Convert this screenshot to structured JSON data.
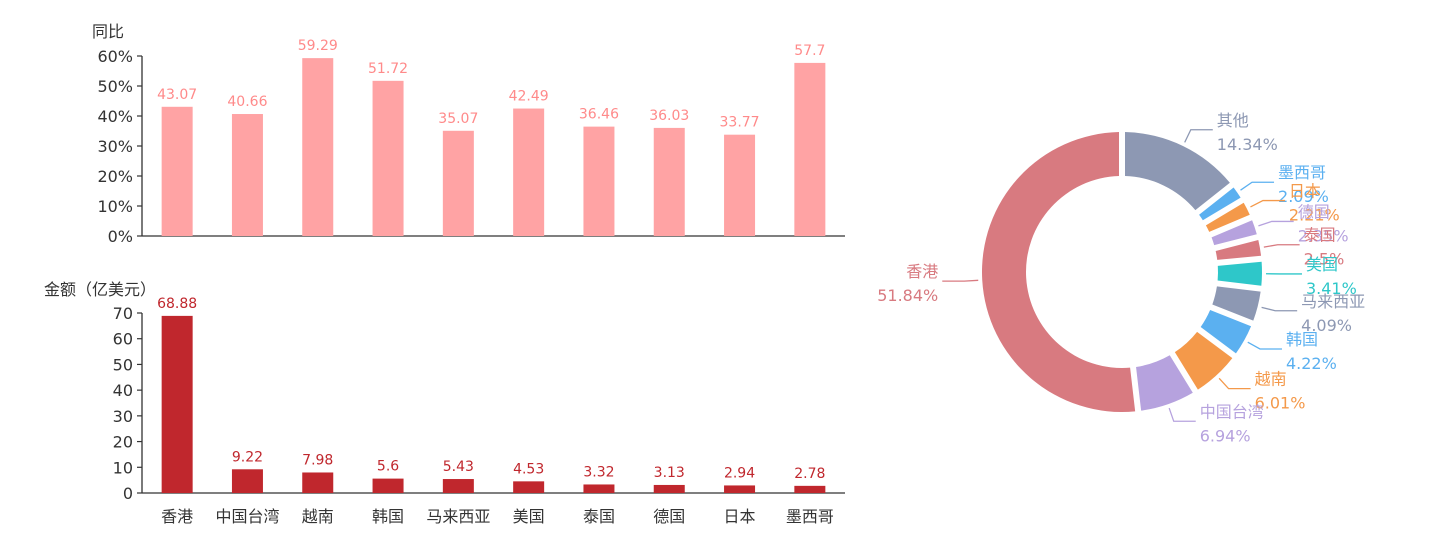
{
  "colors": {
    "top_bar": "#ffa3a4",
    "top_label": "#ff8a8a",
    "bottom_bar": "#c0272d",
    "bottom_label": "#c0272d",
    "axis": "#333333",
    "axis_text": "#333333"
  },
  "chart_data": [
    {
      "type": "bar",
      "ylabel": "同比",
      "categories": [
        "香港",
        "中国台湾",
        "越南",
        "韩国",
        "马来西亚",
        "美国",
        "泰国",
        "德国",
        "日本",
        "墨西哥"
      ],
      "values": [
        43.07,
        40.66,
        59.29,
        51.72,
        35.07,
        42.49,
        36.46,
        36.03,
        33.77,
        57.7
      ],
      "data_labels": [
        "43.07",
        "40.66",
        "59.29",
        "51.72",
        "35.07",
        "42.49",
        "36.46",
        "36.03",
        "33.77",
        "57.7"
      ],
      "ylim": [
        0,
        60
      ],
      "yticks": [
        "0%",
        "10%",
        "20%",
        "30%",
        "40%",
        "50%",
        "60%"
      ]
    },
    {
      "type": "bar",
      "ylabel": "金额（亿美元）",
      "categories": [
        "香港",
        "中国台湾",
        "越南",
        "韩国",
        "马来西亚",
        "美国",
        "泰国",
        "德国",
        "日本",
        "墨西哥"
      ],
      "values": [
        68.88,
        9.22,
        7.98,
        5.6,
        5.43,
        4.53,
        3.32,
        3.13,
        2.94,
        2.78
      ],
      "data_labels": [
        "68.88",
        "9.22",
        "7.98",
        "5.6",
        "5.43",
        "4.53",
        "3.32",
        "3.13",
        "2.94",
        "2.78"
      ],
      "ylim": [
        0,
        70
      ],
      "yticks": [
        "0",
        "10",
        "20",
        "30",
        "40",
        "50",
        "60",
        "70"
      ]
    },
    {
      "type": "pie",
      "donut": true,
      "slices": [
        {
          "name": "其他",
          "value": 14.34,
          "label": "14.34%",
          "color": "#8d98b3"
        },
        {
          "name": "墨西哥",
          "value": 2.09,
          "label": "2.09%",
          "color": "#5bb0f0"
        },
        {
          "name": "日本",
          "value": 2.21,
          "label": "2.21%",
          "color": "#f4994a"
        },
        {
          "name": "德国",
          "value": 2.35,
          "label": "2.35%",
          "color": "#b6a2de"
        },
        {
          "name": "泰国",
          "value": 2.5,
          "label": "2.5%",
          "color": "#d87a80"
        },
        {
          "name": "美国",
          "value": 3.41,
          "label": "3.41%",
          "color": "#2ec7c9"
        },
        {
          "name": "马来西亚",
          "value": 4.09,
          "label": "4.09%",
          "color": "#8d98b3"
        },
        {
          "name": "韩国",
          "value": 4.22,
          "label": "4.22%",
          "color": "#5bb0f0"
        },
        {
          "name": "越南",
          "value": 6.01,
          "label": "6.01%",
          "color": "#f4994a"
        },
        {
          "name": "中国台湾",
          "value": 6.94,
          "label": "6.94%",
          "color": "#b6a2de"
        },
        {
          "name": "香港",
          "value": 51.84,
          "label": "51.84%",
          "color": "#d87a80"
        }
      ]
    }
  ]
}
